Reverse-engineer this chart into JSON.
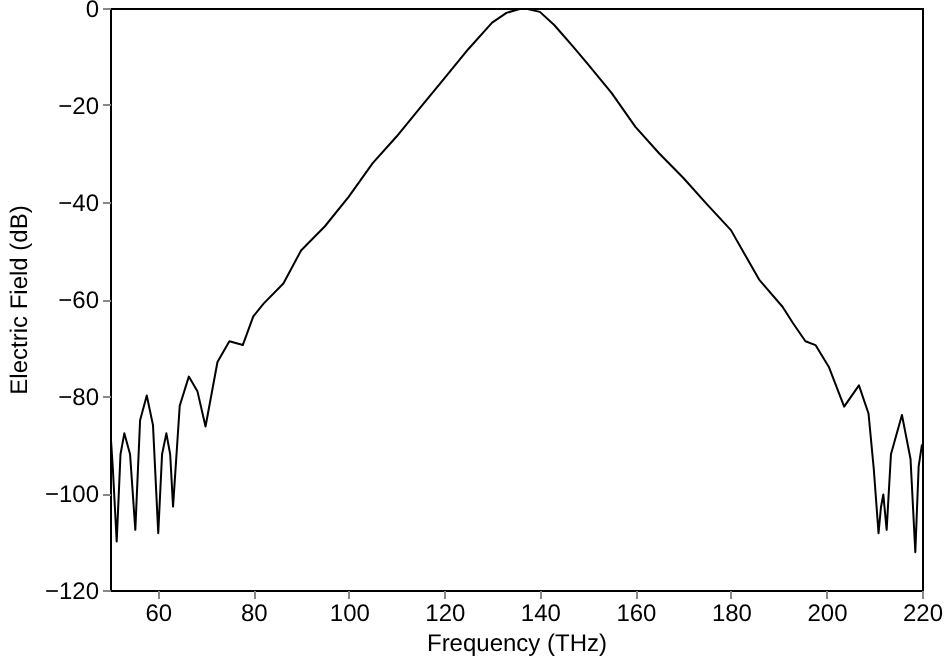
{
  "chart_data": {
    "type": "line",
    "xlabel": "Frequency (THz)",
    "ylabel": "Electric Field (dB)",
    "xlim": [
      50,
      220
    ],
    "xticks": [
      60,
      80,
      100,
      120,
      140,
      160,
      180,
      200,
      220
    ],
    "ylim": [
      -120,
      0
    ],
    "yticks": [
      -120,
      -100,
      -80,
      -60,
      -40,
      -20,
      0
    ],
    "grid": false,
    "marker": "none",
    "line_style": "solid",
    "series": [
      {
        "color": "#000000",
        "x": [
          50,
          50.6,
          51.4,
          52.2,
          53,
          54.2,
          55.3,
          56.3,
          57.7,
          59,
          60.1,
          60.9,
          61.8,
          62.6,
          63.2,
          64.6,
          66.5,
          68.3,
          70,
          72.5,
          75,
          77.8,
          80,
          82.2,
          86.3,
          90,
          95,
          100,
          105,
          110,
          115,
          120,
          125,
          130,
          133,
          136.5,
          140,
          143,
          147,
          150,
          155,
          160,
          165,
          170,
          175,
          180,
          185.9,
          190.8,
          193,
          195.6,
          197.7,
          200.5,
          203.7,
          206.8,
          208.8,
          209.9,
          210.9,
          211.4,
          211.9,
          212.6,
          213.5,
          215.8,
          217.6,
          218.6,
          219.3,
          220
        ],
        "values": [
          -86,
          -95,
          -110,
          -92,
          -87.7,
          -92,
          -107.6,
          -85,
          -79.9,
          -86,
          -108.3,
          -92,
          -87.7,
          -92,
          -102.8,
          -82,
          -76,
          -79,
          -86.3,
          -73,
          -68.7,
          -69.5,
          -63.6,
          -60.9,
          -56.8,
          -50,
          -45,
          -38.9,
          -32,
          -26.5,
          -20.5,
          -14.5,
          -8.5,
          -3,
          -1,
          0,
          -0.8,
          -3.5,
          -8,
          -11.5,
          -17.5,
          -24.5,
          -30,
          -35,
          -40.5,
          -45.8,
          -56,
          -61.6,
          -65,
          -68.7,
          -69.5,
          -74,
          -82.2,
          -77.8,
          -83.6,
          -95,
          -108.3,
          -103,
          -100.3,
          -107.6,
          -92,
          -83.9,
          -93,
          -112.2,
          -94.5,
          -90
        ]
      }
    ]
  }
}
